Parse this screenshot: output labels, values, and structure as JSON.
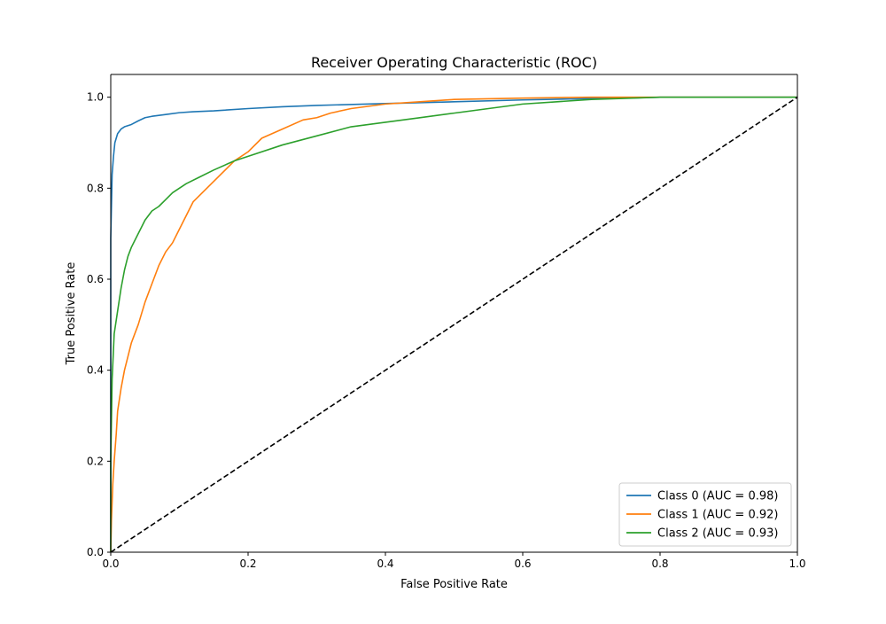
{
  "chart_data": {
    "type": "line",
    "title": "Receiver Operating Characteristic (ROC)",
    "xlabel": "False Positive Rate",
    "ylabel": "True Positive Rate",
    "xlim": [
      0,
      1
    ],
    "ylim": [
      0,
      1.05
    ],
    "xticks": [
      0,
      0.2,
      0.4,
      0.6,
      0.8,
      1.0
    ],
    "xtick_labels": [
      "0.0",
      "0.2",
      "0.4",
      "0.6",
      "0.8",
      "1.0"
    ],
    "yticks": [
      0,
      0.2,
      0.4,
      0.6,
      0.8,
      1.0
    ],
    "ytick_labels": [
      "0.0",
      "0.2",
      "0.4",
      "0.6",
      "0.8",
      "1.0"
    ],
    "grid": false,
    "legend_position": "lower-right",
    "series": [
      {
        "name": "Class 0 (AUC = 0.98)",
        "color": "#1f77b4",
        "style": "solid",
        "x": [
          0,
          0,
          0.002,
          0.004,
          0.006,
          0.01,
          0.015,
          0.02,
          0.03,
          0.04,
          0.05,
          0.06,
          0.08,
          0.1,
          0.12,
          0.15,
          0.2,
          0.25,
          0.3,
          0.4,
          0.5,
          0.6,
          0.7,
          0.75,
          0.8,
          0.9,
          1.0
        ],
        "y": [
          0,
          0.69,
          0.83,
          0.87,
          0.9,
          0.92,
          0.93,
          0.935,
          0.94,
          0.948,
          0.955,
          0.958,
          0.962,
          0.966,
          0.968,
          0.97,
          0.975,
          0.979,
          0.982,
          0.986,
          0.99,
          0.994,
          0.997,
          0.998,
          1.0,
          1.0,
          1.0
        ]
      },
      {
        "name": "Class 1 (AUC = 0.92)",
        "color": "#ff7f0e",
        "style": "solid",
        "x": [
          0,
          0.001,
          0.003,
          0.005,
          0.008,
          0.01,
          0.015,
          0.02,
          0.025,
          0.03,
          0.04,
          0.05,
          0.06,
          0.07,
          0.08,
          0.09,
          0.1,
          0.11,
          0.12,
          0.14,
          0.16,
          0.18,
          0.2,
          0.22,
          0.25,
          0.28,
          0.3,
          0.32,
          0.35,
          0.4,
          0.45,
          0.5,
          0.6,
          0.7,
          0.8,
          1.0
        ],
        "y": [
          0,
          0.07,
          0.15,
          0.2,
          0.26,
          0.31,
          0.36,
          0.4,
          0.43,
          0.46,
          0.5,
          0.55,
          0.59,
          0.63,
          0.66,
          0.68,
          0.71,
          0.74,
          0.77,
          0.8,
          0.83,
          0.86,
          0.88,
          0.91,
          0.93,
          0.95,
          0.955,
          0.965,
          0.975,
          0.985,
          0.99,
          0.995,
          0.998,
          1.0,
          1.0,
          1.0
        ]
      },
      {
        "name": "Class 2 (AUC = 0.93)",
        "color": "#2ca02c",
        "style": "solid",
        "x": [
          0,
          0,
          0.002,
          0.005,
          0.01,
          0.015,
          0.02,
          0.025,
          0.03,
          0.04,
          0.05,
          0.06,
          0.07,
          0.08,
          0.09,
          0.1,
          0.11,
          0.13,
          0.15,
          0.18,
          0.2,
          0.25,
          0.3,
          0.35,
          0.4,
          0.45,
          0.5,
          0.55,
          0.6,
          0.65,
          0.7,
          0.8,
          0.9,
          1.0
        ],
        "y": [
          0,
          0.2,
          0.38,
          0.48,
          0.53,
          0.58,
          0.62,
          0.65,
          0.67,
          0.7,
          0.73,
          0.75,
          0.76,
          0.775,
          0.79,
          0.8,
          0.81,
          0.825,
          0.84,
          0.86,
          0.87,
          0.895,
          0.915,
          0.935,
          0.945,
          0.955,
          0.965,
          0.975,
          0.985,
          0.99,
          0.995,
          1.0,
          1.0,
          1.0
        ]
      },
      {
        "name": "chance diagonal",
        "color": "#000000",
        "style": "dashed",
        "in_legend": false,
        "x": [
          0,
          1
        ],
        "y": [
          0,
          1
        ]
      }
    ]
  }
}
